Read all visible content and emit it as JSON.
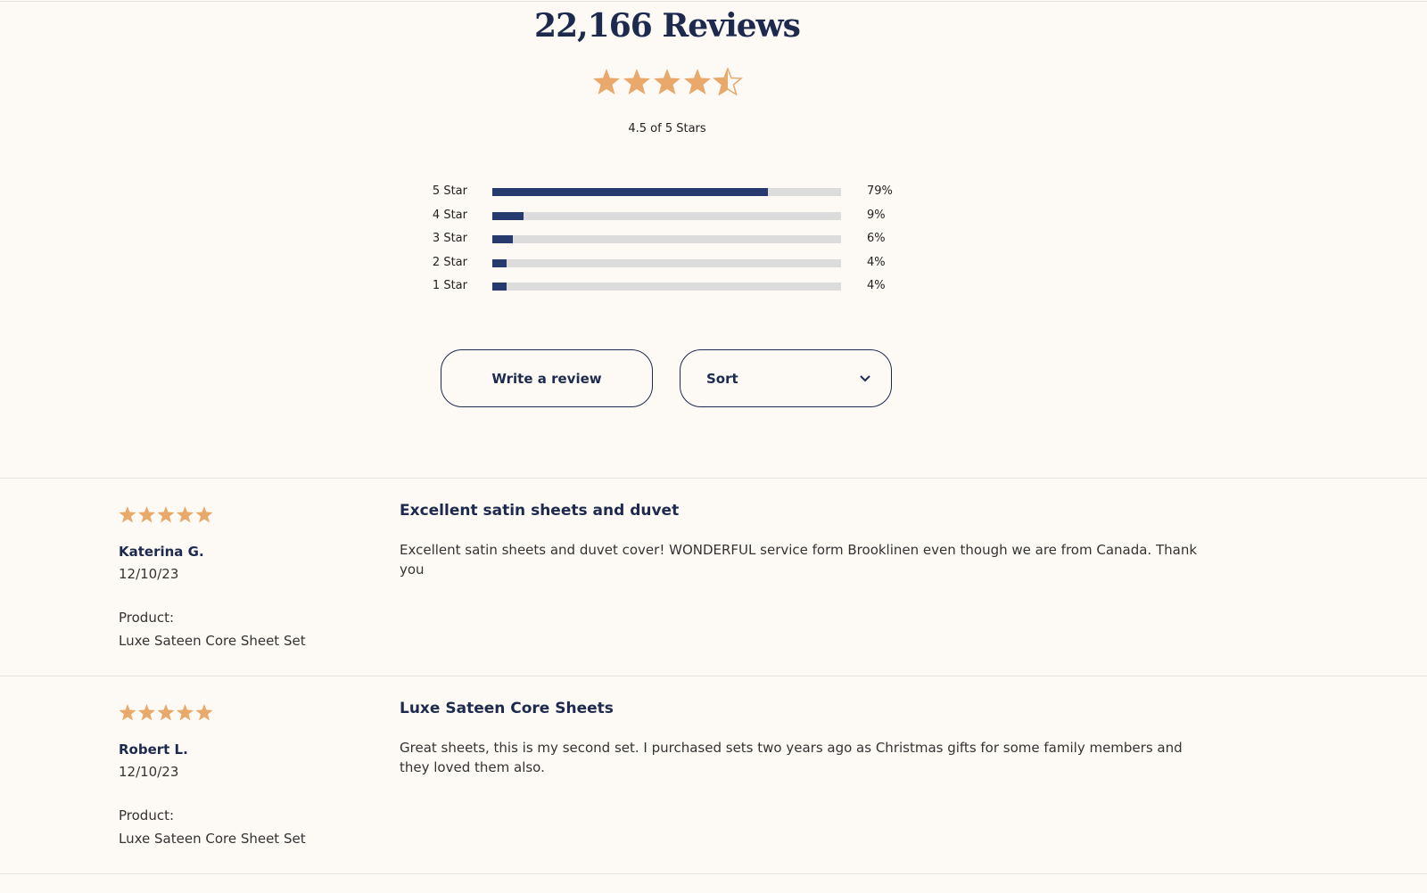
{
  "header": {
    "title": "22,166 Reviews",
    "rating_text": "4.5 of 5 Stars"
  },
  "rating_breakdown": {
    "labels": [
      "5 Star",
      "4 Star",
      "3 Star",
      "2 Star",
      "1 Star"
    ],
    "values": [
      79,
      9,
      6,
      4,
      4
    ],
    "value_labels": [
      "79%",
      "9%",
      "6%",
      "4%",
      "4%"
    ]
  },
  "buttons": {
    "write": "Write a review",
    "sort": "Sort"
  },
  "reviews": [
    {
      "title": "Excellent satin sheets and duvet",
      "body": "Excellent satin sheets and duvet cover! WONDERFUL service form Brooklinen even though we are from Canada. Thank you",
      "author": "Katerina G.",
      "date": "12/10/23",
      "product_label": "Product:",
      "product": "Luxe Sateen Core Sheet Set"
    },
    {
      "title": "Luxe Sateen Core Sheets",
      "body": "Great sheets, this is my second set. I purchased sets two years ago as Christmas gifts for some family members and they loved them also.",
      "author": "Robert L.",
      "date": "12/10/23",
      "product_label": "Product:",
      "product": "Luxe Sateen Core Sheet Set"
    }
  ]
}
